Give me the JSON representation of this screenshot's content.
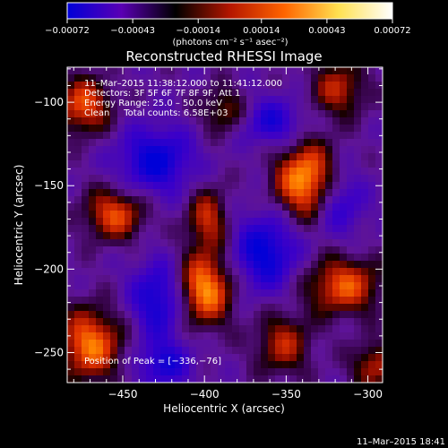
{
  "chart_data": {
    "type": "heatmap",
    "title": "Reconstructed RHESSI Image",
    "xlabel": "Heliocentric X (arcsec)",
    "ylabel": "Heliocentric Y (arcsec)",
    "xlim": [
      -484,
      -291
    ],
    "ylim": [
      -268,
      -79
    ],
    "xticks": [
      -450,
      -400,
      -350,
      -300
    ],
    "xtick_labels": [
      "−450",
      "−400",
      "−350",
      "−300"
    ],
    "yticks": [
      -100,
      -150,
      -200,
      -250
    ],
    "ytick_labels": [
      "−100",
      "−150",
      "−200",
      "−250"
    ],
    "grid": false,
    "colorbar": {
      "min": -0.00072,
      "max": 0.00072,
      "ticks": [
        -0.00072,
        -0.00043,
        -0.00014,
        0.00014,
        0.00043,
        0.00072
      ],
      "tick_labels": [
        "−0.00072",
        "−0.00043",
        "−0.00014",
        "0.00014",
        "0.00043",
        "0.00072"
      ],
      "units": "(photons cm⁻² s⁻¹ asec⁻²)",
      "colors": [
        "#0000d8",
        "#5a00b4",
        "#000000",
        "#b41600",
        "#ff6400",
        "#ffe050",
        "#ffffff"
      ]
    },
    "annotations": [
      "11–Mar–2015 11:38:12.000 to 11:41:12.000",
      "Detectors: 3F 5F 6F 7F 8F 9F, Att 1",
      "Energy Range: 25.0 – 50.0 keV",
      "Clean     Total counts: 6.58E+03"
    ],
    "peak_label": "Position of Peak = [−336,−76]",
    "peak": {
      "x": -336,
      "y": -76
    },
    "sources": [
      {
        "x": -338,
        "y": -147,
        "amp": 1.0,
        "sx": 13,
        "sy": 16
      },
      {
        "x": -400,
        "y": -212,
        "amp": 0.95,
        "sx": 12,
        "sy": 15
      },
      {
        "x": -470,
        "y": -245,
        "amp": 0.85,
        "sx": 14,
        "sy": 15
      },
      {
        "x": -398,
        "y": -170,
        "amp": 0.6,
        "sx": 9,
        "sy": 13
      },
      {
        "x": -455,
        "y": -167,
        "amp": 0.72,
        "sx": 13,
        "sy": 11
      },
      {
        "x": -315,
        "y": -210,
        "amp": 0.75,
        "sx": 16,
        "sy": 12
      },
      {
        "x": -352,
        "y": -245,
        "amp": 0.55,
        "sx": 12,
        "sy": 13
      },
      {
        "x": -474,
        "y": -102,
        "amp": 0.72,
        "sx": 12,
        "sy": 12
      },
      {
        "x": -318,
        "y": -92,
        "amp": 0.55,
        "sx": 12,
        "sy": 12
      },
      {
        "x": -388,
        "y": -105,
        "amp": 0.45,
        "sx": 10,
        "sy": 10
      },
      {
        "x": -296,
        "y": -258,
        "amp": 0.55,
        "sx": 10,
        "sy": 10
      },
      {
        "x": -430,
        "y": -135,
        "amp": -0.7,
        "sx": 16,
        "sy": 14
      },
      {
        "x": -363,
        "y": -190,
        "amp": -0.72,
        "sx": 14,
        "sy": 16
      },
      {
        "x": -428,
        "y": -218,
        "amp": -0.65,
        "sx": 12,
        "sy": 16
      },
      {
        "x": -318,
        "y": -160,
        "amp": -0.5,
        "sx": 11,
        "sy": 14
      },
      {
        "x": -425,
        "y": -257,
        "amp": -0.55,
        "sx": 12,
        "sy": 10
      },
      {
        "x": -358,
        "y": -112,
        "amp": -0.55,
        "sx": 13,
        "sy": 10
      }
    ]
  },
  "footer": {
    "timestamp": "11–Mar–2015 18:41"
  }
}
